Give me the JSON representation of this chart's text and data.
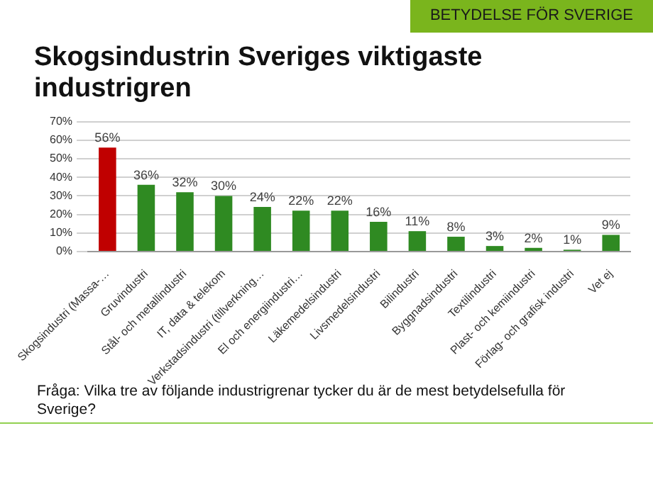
{
  "chart_data": {
    "type": "bar",
    "title": "Skogsindustrin Sveriges viktigaste industrigren",
    "subtitle": "BETYDELSE FÖR SVERIGE",
    "categories": [
      "Skogsindustri (Massa-…",
      "Gruvindustri",
      "Stål- och metallindustri",
      "IT, data & telekom",
      "Verkstadsindustri (tillverkning…",
      "El och energiindustri…",
      "Läkemedelsindustri",
      "Livsmedelsindustri",
      "Bilindustri",
      "Byggnadsindustri",
      "Textilindustri",
      "Plast- och kemiindustri",
      "Förlag- och grafisk industri",
      "Vet ej"
    ],
    "values": [
      56,
      36,
      32,
      30,
      24,
      22,
      22,
      16,
      11,
      8,
      3,
      2,
      1,
      9
    ],
    "value_labels": [
      "56%",
      "36%",
      "32%",
      "30%",
      "24%",
      "22%",
      "22%",
      "16%",
      "11%",
      "8%",
      "3%",
      "2%",
      "1%",
      "9%"
    ],
    "colors": [
      "#c00000",
      "#2f8a22",
      "#2f8a22",
      "#2f8a22",
      "#2f8a22",
      "#2f8a22",
      "#2f8a22",
      "#2f8a22",
      "#2f8a22",
      "#2f8a22",
      "#2f8a22",
      "#2f8a22",
      "#2f8a22",
      "#2f8a22"
    ],
    "ylim": [
      0,
      70
    ],
    "yticks": [
      {
        "value": 0,
        "label": "0%"
      },
      {
        "value": 10,
        "label": "10%"
      },
      {
        "value": 20,
        "label": "20%"
      },
      {
        "value": 30,
        "label": "30%"
      },
      {
        "value": 40,
        "label": "40%"
      },
      {
        "value": 50,
        "label": "50%"
      },
      {
        "value": 60,
        "label": "60%"
      },
      {
        "value": 70,
        "label": "70%"
      }
    ],
    "grid": "y",
    "legend": false,
    "annotations": [
      "Fråga: Vilka tre av följande industrigrenar tycker du är de mest betydelsefulla för Sverige?"
    ]
  }
}
